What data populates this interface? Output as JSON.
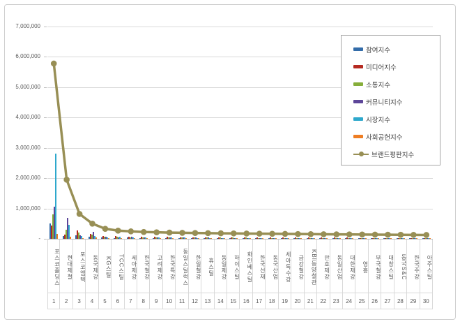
{
  "chart_data": {
    "type": "bar+line",
    "title": "",
    "grid": true,
    "legend_position": "right-top",
    "ylim": [
      0,
      7000000
    ],
    "y_ticks": [
      {
        "value": 0,
        "label": "-"
      },
      {
        "value": 1000000,
        "label": "1,000,000"
      },
      {
        "value": 2000000,
        "label": "2,000,000"
      },
      {
        "value": 3000000,
        "label": "3,000,000"
      },
      {
        "value": 4000000,
        "label": "4,000,000"
      },
      {
        "value": 5000000,
        "label": "5,000,000"
      },
      {
        "value": 6000000,
        "label": "6,000,000"
      },
      {
        "value": 7000000,
        "label": "7,000,000"
      }
    ],
    "categories": [
      "포스코홀딩스",
      "현대제철",
      "포스코엠텍",
      "동국제강",
      "KG스틸",
      "TCC스틸",
      "세아제강",
      "한국철강",
      "고려제강",
      "한국특강",
      "동일스틸럭스",
      "한일철강",
      "휴스틸",
      "동일제강",
      "하이스틸",
      "화인베스틸",
      "한국선재",
      "동국산업",
      "세아특수강",
      "금강철강",
      "KBI동양철관",
      "만호제강",
      "동일산업",
      "대한제강",
      "영흥",
      "부국철강",
      "대창스틸",
      "동국S&C",
      "한국주강",
      "아주스틸"
    ],
    "ranks": [
      "1",
      "2",
      "3",
      "4",
      "5",
      "6",
      "7",
      "8",
      "9",
      "10",
      "11",
      "12",
      "13",
      "14",
      "15",
      "16",
      "17",
      "18",
      "19",
      "20",
      "21",
      "22",
      "23",
      "24",
      "25",
      "26",
      "27",
      "28",
      "29",
      "30"
    ],
    "series": [
      {
        "name": "참여지수",
        "type": "bar",
        "color": "#336ca9",
        "values": [
          500000,
          90000,
          120000,
          60000,
          40000,
          30000,
          35000,
          30000,
          28000,
          26000,
          25000,
          24000,
          23000,
          22000,
          22000,
          21000,
          20000,
          20000,
          19000,
          19000,
          18000,
          18000,
          17000,
          17000,
          16000,
          16000,
          15000,
          15000,
          14000,
          14000
        ]
      },
      {
        "name": "미디어지수",
        "type": "bar",
        "color": "#b52a21",
        "values": [
          440000,
          130000,
          270000,
          160000,
          90000,
          100000,
          80000,
          70000,
          65000,
          60000,
          55000,
          52000,
          50000,
          48000,
          46000,
          45000,
          43000,
          42000,
          40000,
          39000,
          38000,
          37000,
          36000,
          35000,
          34000,
          33000,
          32000,
          32000,
          31000,
          30000
        ]
      },
      {
        "name": "소통지수",
        "type": "bar",
        "color": "#86ae3a",
        "values": [
          800000,
          310000,
          200000,
          130000,
          70000,
          60000,
          55000,
          50000,
          48000,
          45000,
          42000,
          40000,
          38000,
          37000,
          36000,
          35000,
          34000,
          33000,
          32000,
          31000,
          30000,
          30000,
          29000,
          28000,
          28000,
          27000,
          27000,
          26000,
          26000,
          25000
        ]
      },
      {
        "name": "커뮤니티지수",
        "type": "bar",
        "color": "#5d4699",
        "values": [
          1050000,
          700000,
          110000,
          230000,
          60000,
          50000,
          60000,
          45000,
          42000,
          40000,
          38000,
          36000,
          35000,
          34000,
          33000,
          32000,
          31000,
          30000,
          29000,
          28000,
          27000,
          26000,
          26000,
          25000,
          25000,
          24000,
          24000,
          23000,
          23000,
          22000
        ]
      },
      {
        "name": "시장지수",
        "type": "bar",
        "color": "#2ea8cc",
        "values": [
          2820000,
          470000,
          90000,
          90000,
          50000,
          60000,
          50000,
          45000,
          40000,
          38000,
          35000,
          33000,
          32000,
          30000,
          29000,
          28000,
          27000,
          26000,
          25000,
          25000,
          24000,
          23000,
          23000,
          22000,
          22000,
          21000,
          21000,
          20000,
          20000,
          19000
        ]
      },
      {
        "name": "사회공헌지수",
        "type": "bar",
        "color": "#ee7d23",
        "values": [
          160000,
          60000,
          30000,
          40000,
          20000,
          15000,
          18000,
          15000,
          14000,
          13000,
          12000,
          12000,
          11000,
          11000,
          10000,
          10000,
          10000,
          9000,
          9000,
          9000,
          8000,
          8000,
          8000,
          8000,
          7000,
          7000,
          7000,
          7000,
          6000,
          6000
        ]
      },
      {
        "name": "브랜드평판지수",
        "type": "line",
        "color": "#988f55",
        "values": [
          5780000,
          1950000,
          820000,
          500000,
          330000,
          270000,
          245000,
          225000,
          215000,
          205000,
          198000,
          192000,
          187000,
          182000,
          178000,
          174000,
          170000,
          166000,
          162000,
          158000,
          154000,
          151000,
          148000,
          145000,
          142000,
          139000,
          136000,
          133000,
          130000,
          127000
        ]
      }
    ]
  },
  "colors": {
    "gridline": "#d9d9d9",
    "axis": "#bfbfbf",
    "tick_text": "#595959",
    "legend_text": "#404040",
    "legend_border": "#a6a6a6",
    "frame_border": "#cfcfcf"
  }
}
